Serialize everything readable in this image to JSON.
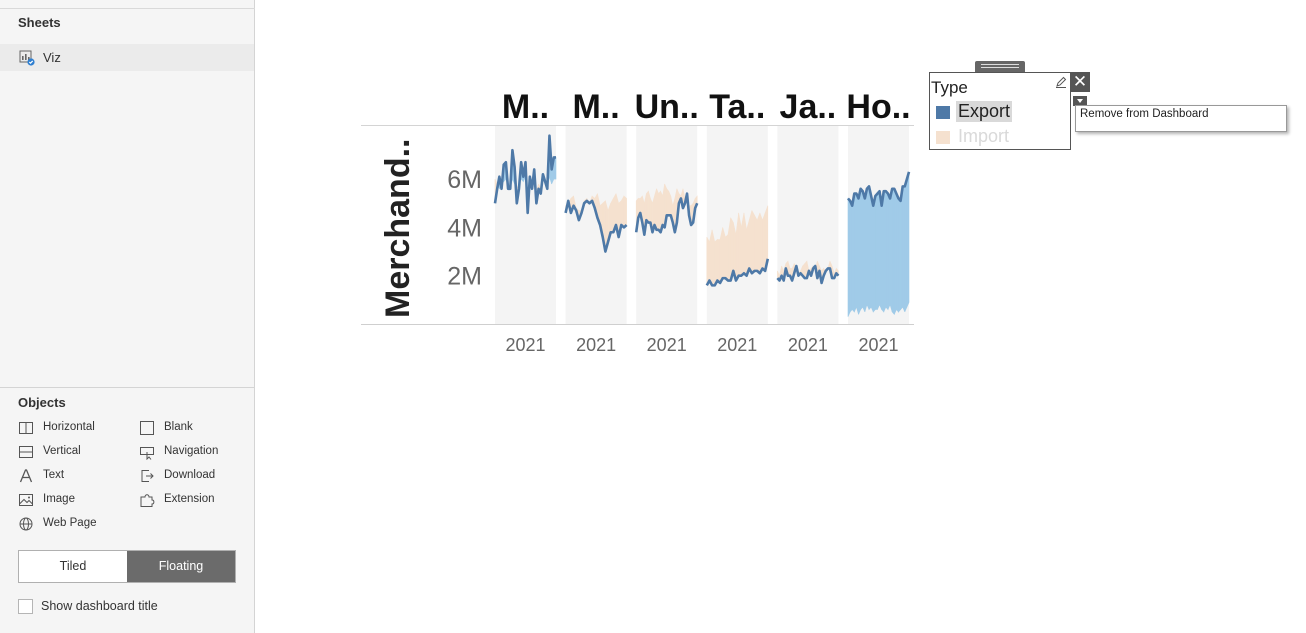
{
  "sidebar": {
    "sheets_title": "Sheets",
    "sheets": [
      {
        "label": "Viz",
        "icon": "worksheet-icon"
      }
    ],
    "objects_title": "Objects",
    "objects": [
      {
        "label": "Horizontal",
        "icon": "horizontal-container-icon"
      },
      {
        "label": "Blank",
        "icon": "blank-icon"
      },
      {
        "label": "Vertical",
        "icon": "vertical-container-icon"
      },
      {
        "label": "Navigation",
        "icon": "navigation-icon"
      },
      {
        "label": "Text",
        "icon": "text-icon"
      },
      {
        "label": "Download",
        "icon": "download-icon"
      },
      {
        "label": "Image",
        "icon": "image-icon"
      },
      {
        "label": "Extension",
        "icon": "extension-icon"
      },
      {
        "label": "Web Page",
        "icon": "globe-icon"
      }
    ],
    "layout_modes": {
      "tiled": "Tiled",
      "floating": "Floating",
      "selected": "Floating"
    },
    "show_title_label": "Show dashboard title",
    "show_title_checked": false
  },
  "legend": {
    "title": "Type",
    "items": [
      {
        "label": "Export",
        "color": "#4e79a7",
        "highlighted": true
      },
      {
        "label": "Import",
        "color": "#f5e1cf",
        "highlighted": false
      }
    ],
    "close_icon": "close-icon",
    "menu_icon": "dropdown-arrow-icon",
    "edit_icon": "edit-title-icon"
  },
  "context_menu": {
    "items": [
      "Remove from Dashboard"
    ]
  },
  "chart_data": {
    "type": "area",
    "ylabel": "Merchand..",
    "yticks": [
      "2M",
      "4M",
      "6M"
    ],
    "ylim": [
      0,
      8.2
    ],
    "unit": "M",
    "grid": false,
    "panels": [
      {
        "title": "M..",
        "xtick": "2021",
        "export": [
          5.0,
          5.6,
          6.1,
          5.6,
          6.6,
          6.7,
          5.6,
          5.6,
          7.2,
          6.5,
          5.0,
          5.6,
          6.7,
          6.1,
          6.7,
          4.6,
          6.1,
          5.6,
          6.4,
          5.0,
          5.6,
          5.4,
          6.2,
          5.9,
          5.6,
          7.8,
          6.4,
          6.9,
          6.9
        ],
        "import": [
          6.0,
          5.8,
          5.6,
          5.8,
          5.9,
          6.0,
          5.7,
          5.6,
          6.0,
          5.8,
          5.6,
          5.8,
          6.0,
          5.9,
          6.1,
          5.4,
          5.9,
          5.7,
          6.0,
          5.5,
          5.8,
          5.6,
          6.0,
          5.9,
          5.6,
          6.1,
          5.8,
          6.0,
          6.0
        ]
      },
      {
        "title": "M..",
        "xtick": "2021",
        "export": [
          4.6,
          5.1,
          4.6,
          4.9,
          4.7,
          4.3,
          4.6,
          5.0,
          5.1,
          5.0,
          5.1,
          4.8,
          4.4,
          4.1,
          3.6,
          3.0,
          3.4,
          3.8,
          3.8,
          4.1,
          3.6,
          4.1,
          4.0,
          4.1
        ],
        "import": [
          4.9,
          5.0,
          5.2,
          5.3,
          4.8,
          4.7,
          4.7,
          5.1,
          5.2,
          5.0,
          5.3,
          5.2,
          5.4,
          4.9,
          5.0,
          5.1,
          4.7,
          5.0,
          5.2,
          5.4,
          5.0,
          5.1,
          5.3,
          5.2
        ]
      },
      {
        "title": "Un..",
        "xtick": "2021",
        "export": [
          3.8,
          4.4,
          4.6,
          4.2,
          3.7,
          4.3,
          4.2,
          4.2,
          3.8,
          4.1,
          3.9,
          3.9,
          3.8,
          4.1,
          4.0,
          4.5,
          4.5,
          4.5,
          4.2,
          3.8,
          4.2,
          5.0,
          5.2,
          4.8,
          5.0,
          5.4,
          4.5,
          4.1,
          4.2,
          4.8,
          5.0
        ],
        "import": [
          5.1,
          5.2,
          5.2,
          5.3,
          5.0,
          5.4,
          5.5,
          5.2,
          5.0,
          5.3,
          5.6,
          5.4,
          5.5,
          5.3,
          5.8,
          5.6,
          5.5,
          5.3,
          4.9,
          5.2,
          5.6,
          5.4,
          5.3,
          5.6,
          5.2,
          5.0,
          4.9,
          4.9,
          5.0,
          5.2,
          5.3
        ]
      },
      {
        "title": "Ta..",
        "xtick": "2021",
        "export": [
          1.6,
          1.8,
          1.6,
          1.6,
          1.8,
          1.7,
          1.9,
          1.9,
          1.8,
          1.8,
          2.2,
          1.8,
          2.0,
          2.0,
          2.1,
          2.0,
          2.3,
          2.1,
          2.2,
          2.2,
          2.1,
          2.3,
          2.2,
          2.7
        ],
        "import": [
          3.6,
          3.4,
          3.9,
          3.4,
          3.5,
          3.5,
          4.0,
          3.6,
          3.7,
          4.4,
          4.2,
          3.7,
          4.6,
          4.0,
          4.6,
          3.9,
          4.3,
          4.7,
          4.5,
          4.3,
          4.6,
          4.3,
          4.6,
          4.9
        ]
      },
      {
        "title": "Ja..",
        "xtick": "2021",
        "export": [
          1.9,
          1.8,
          2.0,
          1.8,
          2.3,
          2.0,
          2.0,
          1.8,
          2.1,
          2.4,
          2.0,
          2.1,
          2.0,
          1.9,
          1.9,
          2.2,
          2.0,
          2.3,
          2.4,
          1.9,
          2.2,
          1.7,
          2.0,
          2.2,
          2.3,
          2.3,
          1.9,
          1.9,
          2.1,
          2.0
        ],
        "import": [
          2.2,
          2.0,
          2.4,
          2.2,
          2.5,
          2.6,
          2.3,
          2.3,
          2.5,
          2.4,
          2.1,
          2.2,
          2.4,
          2.5,
          2.6,
          2.2,
          2.3,
          2.4,
          2.3,
          2.6,
          2.4,
          2.2,
          2.3,
          2.2,
          2.3,
          2.6,
          2.4,
          2.1,
          2.3,
          2.2
        ]
      },
      {
        "title": "Ho..",
        "xtick": "2021",
        "export": [
          5.2,
          5.1,
          4.9,
          5.4,
          5.4,
          5.2,
          5.6,
          5.5,
          5.2,
          5.6,
          5.7,
          5.3,
          4.9,
          5.3,
          5.4,
          5.5,
          4.9,
          5.5,
          5.5,
          5.4,
          5.2,
          5.6,
          5.6,
          5.4,
          5.2,
          5.1,
          5.7,
          5.7,
          6.0,
          6.3
        ],
        "import": [
          0.3,
          0.5,
          0.6,
          0.5,
          0.7,
          0.4,
          0.6,
          0.7,
          0.5,
          0.8,
          0.6,
          0.7,
          0.5,
          0.6,
          0.6,
          0.8,
          0.6,
          0.5,
          0.7,
          0.6,
          0.8,
          0.5,
          0.4,
          0.6,
          0.5,
          0.6,
          0.7,
          0.5,
          0.7,
          0.9
        ]
      }
    ]
  }
}
